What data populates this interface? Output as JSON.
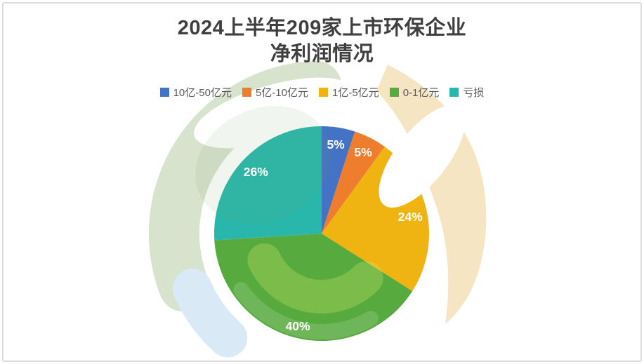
{
  "page": {
    "background": "#ffffff",
    "border_color": "#dcdcdc"
  },
  "chart_data": {
    "type": "pie",
    "title": "2024上半年209家上市环保企业净利润情况",
    "title_lines": [
      "2024上半年209家上市环保企业",
      "净利润情况"
    ],
    "legend_position": "top",
    "start_angle_deg": 0,
    "direction": "clockwise",
    "categories": [
      "10亿-50亿元",
      "5亿-10亿元",
      "1亿-5亿元",
      "0-1亿元",
      "亏损"
    ],
    "values": [
      5,
      5,
      24,
      40,
      26
    ],
    "labels": [
      "5%",
      "5%",
      "24%",
      "40%",
      "26%"
    ],
    "unit": "%",
    "total": 100,
    "colors": [
      "#4472c4",
      "#ee7e2e",
      "#f0b412",
      "#57ab3e",
      "#2ab7ab"
    ]
  },
  "style": {
    "title_color": "#3f3f3f",
    "legend_text_color": "#595959",
    "slice_label_color": "#ffffff",
    "watermark_sage": "#d7e3cc",
    "watermark_tan": "#f5e5c3",
    "watermark_blue": "#d9e9f6"
  }
}
